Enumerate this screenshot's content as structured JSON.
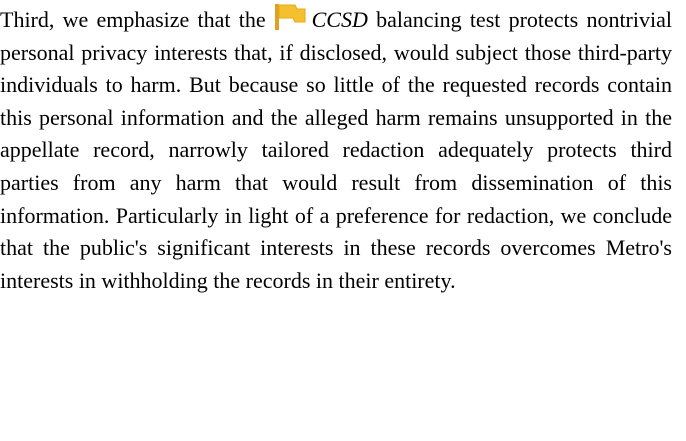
{
  "paragraph": {
    "lead": "Third, we emphasize that the",
    "case_name": "CCSD",
    "rest": "balancing test protects nontrivial personal privacy interests that, if disclosed, would subject those third-party individuals to harm. But because so little of the requested records contain this personal information and the alleged harm remains unsupported in the appellate record, narrowly tailored redaction adequately protects third parties from any harm that would result from dissemination of this information. Particularly in light of a preference for redaction, we conclude that the public's significant interests in these records overcomes Metro's interests in withholding the records in their entirety."
  }
}
